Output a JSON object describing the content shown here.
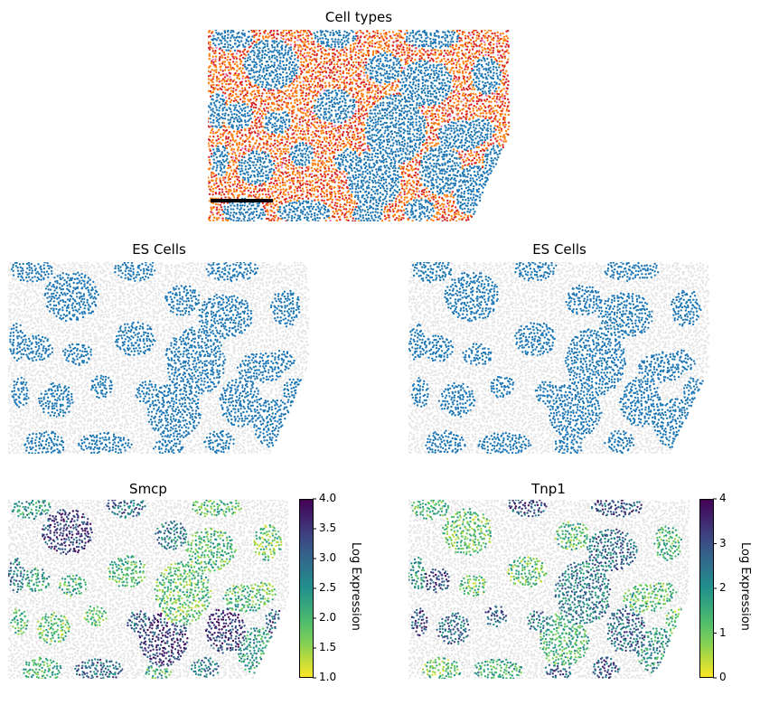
{
  "chart_data": [
    {
      "type": "scatter",
      "title": "Cell types",
      "colors": [
        "#1f77b4",
        "#ff7f0e",
        "#d62728",
        "#e377c2"
      ],
      "scale_bar": true,
      "axes": "off"
    },
    {
      "type": "scatter",
      "title": "ES Cells",
      "colors": [
        "#1f77b4",
        "#e5e5e5"
      ],
      "axes": "off"
    },
    {
      "type": "scatter",
      "title": "ES Cells",
      "colors": [
        "#1f77b4",
        "#e5e5e5"
      ],
      "axes": "off"
    },
    {
      "type": "scatter",
      "title": "Smcp",
      "colorbar": {
        "label": "Log Expression",
        "range": [
          1.0,
          4.0
        ],
        "ticks": [
          "1.0",
          "1.5",
          "2.0",
          "2.5",
          "3.0",
          "3.5",
          "4.0"
        ],
        "colormap": "viridis_r"
      },
      "axes": "off"
    },
    {
      "type": "scatter",
      "title": "Tnp1",
      "colorbar": {
        "label": "Log Expression",
        "range": [
          0,
          4
        ],
        "ticks": [
          "0",
          "1",
          "2",
          "3",
          "4"
        ],
        "colormap": "viridis_r"
      },
      "axes": "off"
    }
  ]
}
